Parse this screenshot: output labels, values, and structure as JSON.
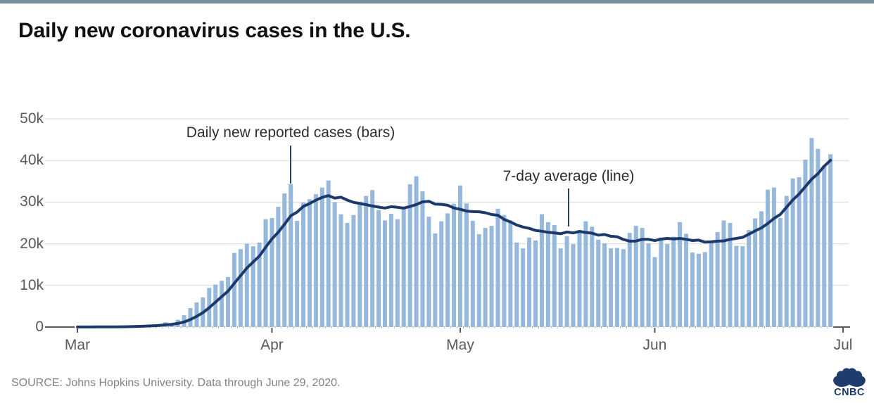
{
  "page": {
    "title": "Daily new coronavirus cases in the U.S."
  },
  "source_note": "SOURCE: Johns Hopkins University. Data through June 29, 2020.",
  "branding": {
    "logo_text": "CNBC"
  },
  "colors": {
    "top_accent_bar": "#7e8f9d",
    "bar": "#95b8dc",
    "line": "#1b3a6b",
    "gridline": "#dadada",
    "axis": "#58595b",
    "tick_text": "#58595b",
    "annotation_text": "#2d2d2d",
    "annotation_pointer": "#2b4168",
    "source_text": "#7f8287",
    "logo": "#1e3c6d",
    "title_text": "#111111"
  },
  "chart_data": {
    "type": "bar",
    "title": "Daily new coronavirus cases in the U.S.",
    "xlabel": "",
    "ylabel": "",
    "units": "cases, thousands",
    "grid": "horizontal",
    "legend_position": "none (inline annotations with pointer lines)",
    "x_axis": {
      "tick_labels": [
        "Mar",
        "Apr",
        "May",
        "Jun",
        "Jul"
      ],
      "tick_day_offsets": [
        0,
        31,
        61,
        92,
        122
      ],
      "start_label": "Mar",
      "end_label": "Jul"
    },
    "y_axis": {
      "tick_labels": [
        "0",
        "10k",
        "20k",
        "30k",
        "40k",
        "50k"
      ],
      "tick_values_thousands": [
        0,
        10,
        20,
        30,
        40,
        50
      ]
    },
    "ylim_thousands": [
      0,
      50
    ],
    "annotations": [
      {
        "text": "Daily new reported cases (bars)",
        "points_to": "bar in early April (~34k)"
      },
      {
        "text": "7-day average (line)",
        "points_to": "average line in mid May (~23k)"
      }
    ],
    "series": [
      {
        "name": "Daily new reported cases (bars)",
        "type": "bar",
        "first_day": "Mar 1",
        "last_day": "Jun 29",
        "values_thousands": [
          0.02,
          0.02,
          0.03,
          0.05,
          0.07,
          0.11,
          0.11,
          0.11,
          0.14,
          0.29,
          0.35,
          0.51,
          0.61,
          0.71,
          1.13,
          0.95,
          1.75,
          2.85,
          4.56,
          5.93,
          7.12,
          9.4,
          10.2,
          11.1,
          12.0,
          17.8,
          18.7,
          20.0,
          19.4,
          20.3,
          25.9,
          26.2,
          28.9,
          32.1,
          34.3,
          25.5,
          29.9,
          30.7,
          31.9,
          33.5,
          35.2,
          30.0,
          27.1,
          25.0,
          26.9,
          30.1,
          31.5,
          32.9,
          28.1,
          25.6,
          27.2,
          25.9,
          28.7,
          34.3,
          36.2,
          32.6,
          26.5,
          22.5,
          25.4,
          27.3,
          29.6,
          34.0,
          29.7,
          25.5,
          22.3,
          23.8,
          24.3,
          28.4,
          26.9,
          25.6,
          20.3,
          18.9,
          21.5,
          20.8,
          27.1,
          25.2,
          24.5,
          18.9,
          21.8,
          19.9,
          23.3,
          25.4,
          24.1,
          21.0,
          20.1,
          18.9,
          19.0,
          18.7,
          22.6,
          24.3,
          23.8,
          20.1,
          16.8,
          21.5,
          19.9,
          21.7,
          25.2,
          22.4,
          17.9,
          17.6,
          18.0,
          20.5,
          22.8,
          25.6,
          25.0,
          19.5,
          19.4,
          23.3,
          26.1,
          27.8,
          33.0,
          33.5,
          26.2,
          31.5,
          35.7,
          36.0,
          40.2,
          45.4,
          42.8,
          38.8,
          41.5
        ]
      },
      {
        "name": "7-day average (line)",
        "type": "line",
        "definition": "trailing 7-day mean of the daily bar values",
        "end_value_thousands": 40.0
      }
    ]
  }
}
